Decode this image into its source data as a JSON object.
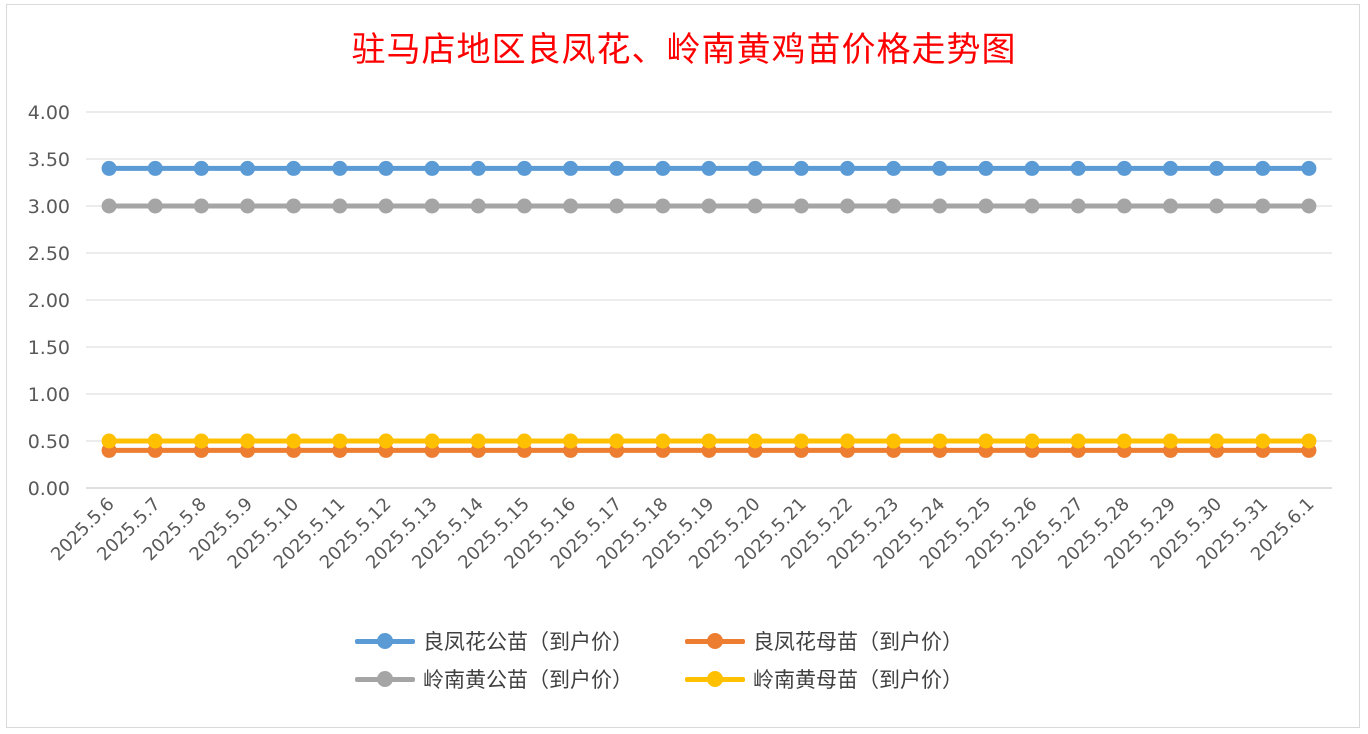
{
  "chart_data": {
    "type": "line",
    "title": "驻马店地区良凤花、岭南黄鸡苗价格走势图",
    "xlabel": "",
    "ylabel": "",
    "ylim": [
      0,
      4
    ],
    "yticks": [
      "0.00",
      "0.50",
      "1.00",
      "1.50",
      "2.00",
      "2.50",
      "3.00",
      "3.50",
      "4.00"
    ],
    "grid": true,
    "legend_position": "bottom",
    "x": [
      "2025.5.6",
      "2025.5.7",
      "2025.5.8",
      "2025.5.9",
      "2025.5.10",
      "2025.5.11",
      "2025.5.12",
      "2025.5.13",
      "2025.5.14",
      "2025.5.15",
      "2025.5.16",
      "2025.5.17",
      "2025.5.18",
      "2025.5.19",
      "2025.5.20",
      "2025.5.21",
      "2025.5.22",
      "2025.5.23",
      "2025.5.24",
      "2025.5.25",
      "2025.5.26",
      "2025.5.27",
      "2025.5.28",
      "2025.5.29",
      "2025.5.30",
      "2025.5.31",
      "2025.6.1"
    ],
    "series": [
      {
        "name": "良凤花公苗（到户价）",
        "color": "#5b9bd5",
        "values": [
          3.4,
          3.4,
          3.4,
          3.4,
          3.4,
          3.4,
          3.4,
          3.4,
          3.4,
          3.4,
          3.4,
          3.4,
          3.4,
          3.4,
          3.4,
          3.4,
          3.4,
          3.4,
          3.4,
          3.4,
          3.4,
          3.4,
          3.4,
          3.4,
          3.4,
          3.4,
          3.4
        ]
      },
      {
        "name": "良凤花母苗（到户价）",
        "color": "#ed7d31",
        "values": [
          0.4,
          0.4,
          0.4,
          0.4,
          0.4,
          0.4,
          0.4,
          0.4,
          0.4,
          0.4,
          0.4,
          0.4,
          0.4,
          0.4,
          0.4,
          0.4,
          0.4,
          0.4,
          0.4,
          0.4,
          0.4,
          0.4,
          0.4,
          0.4,
          0.4,
          0.4,
          0.4
        ]
      },
      {
        "name": "岭南黄公苗（到户价）",
        "color": "#a5a5a5",
        "values": [
          3.0,
          3.0,
          3.0,
          3.0,
          3.0,
          3.0,
          3.0,
          3.0,
          3.0,
          3.0,
          3.0,
          3.0,
          3.0,
          3.0,
          3.0,
          3.0,
          3.0,
          3.0,
          3.0,
          3.0,
          3.0,
          3.0,
          3.0,
          3.0,
          3.0,
          3.0,
          3.0
        ]
      },
      {
        "name": "岭南黄母苗（到户价）",
        "color": "#ffc000",
        "values": [
          0.5,
          0.5,
          0.5,
          0.5,
          0.5,
          0.5,
          0.5,
          0.5,
          0.5,
          0.5,
          0.5,
          0.5,
          0.5,
          0.5,
          0.5,
          0.5,
          0.5,
          0.5,
          0.5,
          0.5,
          0.5,
          0.5,
          0.5,
          0.5,
          0.5,
          0.5,
          0.5
        ]
      }
    ]
  }
}
